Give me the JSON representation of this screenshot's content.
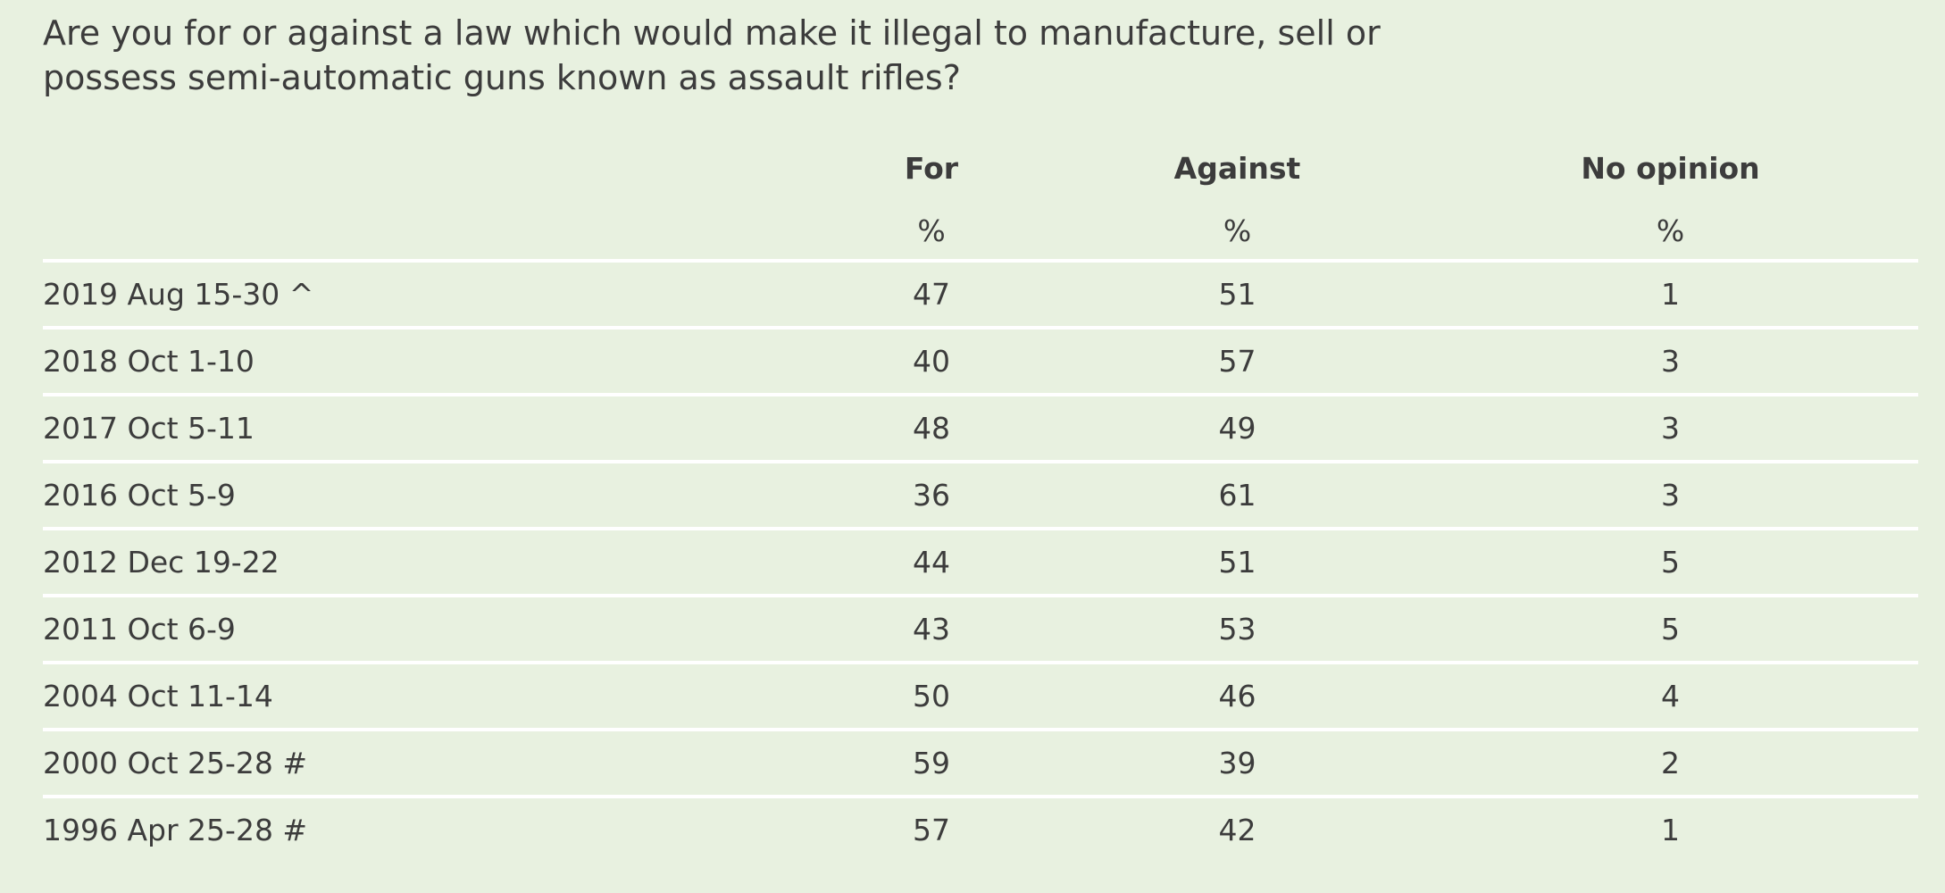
{
  "header": {
    "question": "Are you for or against a law which would make it illegal to manufacture, sell or possess semi-automatic guns known as assault rifles?"
  },
  "table": {
    "columns": [
      "For",
      "Against",
      "No opinion"
    ],
    "units": [
      "%",
      "%",
      "%"
    ]
  },
  "chart_data": {
    "type": "table",
    "title": "Are you for or against a law which would make it illegal to manufacture, sell or possess semi-automatic guns known as assault rifles?",
    "columns": [
      "For",
      "Against",
      "No opinion"
    ],
    "unit": "%",
    "rows": [
      {
        "label": "2019 Aug 15-30 ^",
        "values": [
          "47",
          "51",
          "1"
        ]
      },
      {
        "label": "2018 Oct 1-10",
        "values": [
          "40",
          "57",
          "3"
        ]
      },
      {
        "label": "2017 Oct 5-11",
        "values": [
          "48",
          "49",
          "3"
        ]
      },
      {
        "label": "2016 Oct 5-9",
        "values": [
          "36",
          "61",
          "3"
        ]
      },
      {
        "label": "2012 Dec 19-22",
        "values": [
          "44",
          "51",
          "5"
        ]
      },
      {
        "label": "2011 Oct 6-9",
        "values": [
          "43",
          "53",
          "5"
        ]
      },
      {
        "label": "2004 Oct 11-14",
        "values": [
          "50",
          "46",
          "4"
        ]
      },
      {
        "label": "2000 Oct 25-28 #",
        "values": [
          "59",
          "39",
          "2"
        ]
      },
      {
        "label": "1996 Apr 25-28 #",
        "values": [
          "57",
          "42",
          "1"
        ]
      }
    ]
  }
}
